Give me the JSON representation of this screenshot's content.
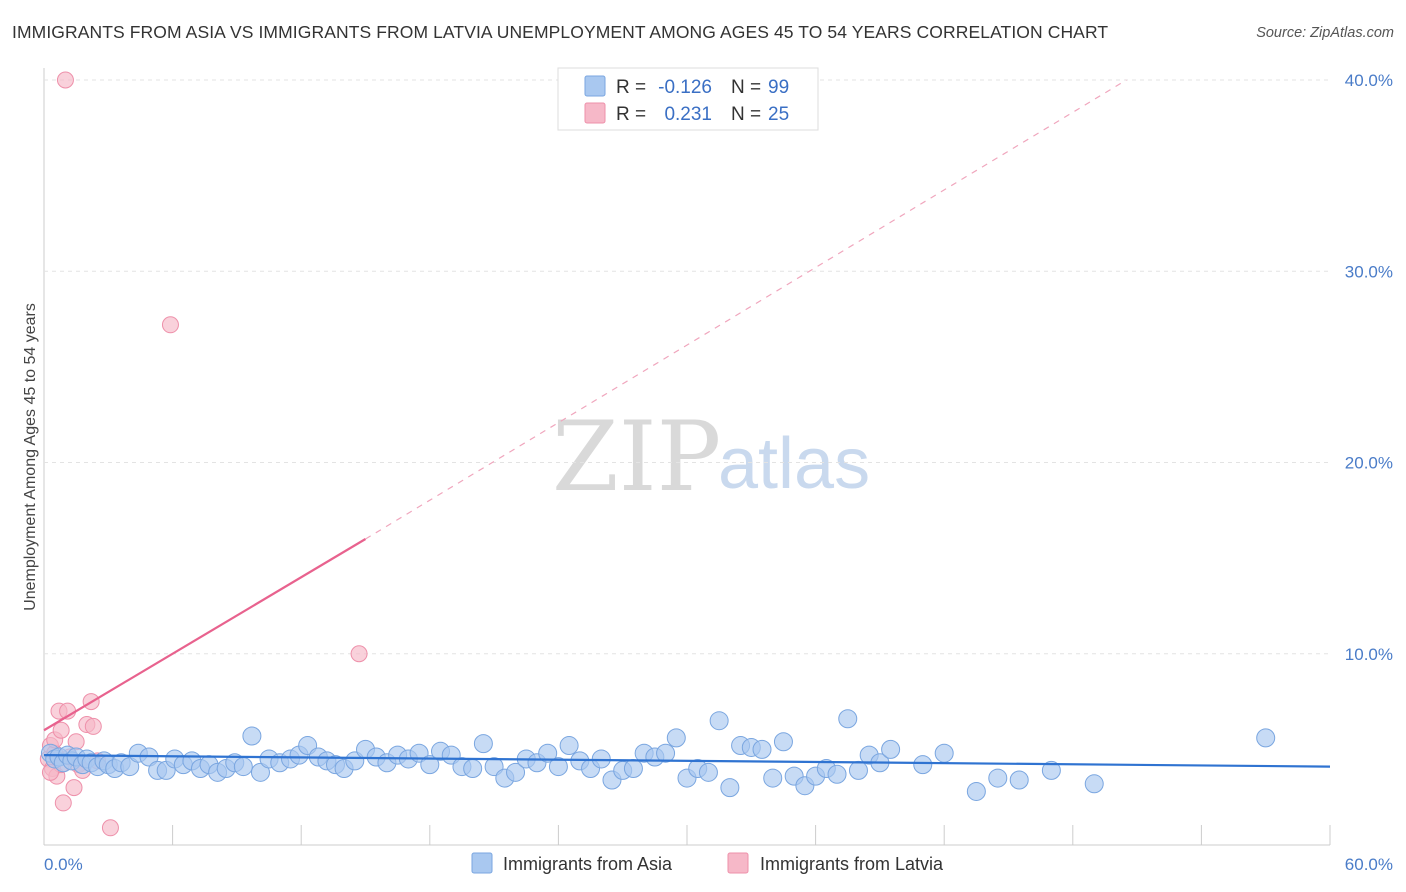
{
  "title": "IMMIGRANTS FROM ASIA VS IMMIGRANTS FROM LATVIA UNEMPLOYMENT AMONG AGES 45 TO 54 YEARS CORRELATION CHART",
  "source": "Source: ZipAtlas.com",
  "watermark": {
    "zip": "ZIP",
    "atlas": "atlas"
  },
  "legend_box": {
    "rows": [
      {
        "r_label": "R =",
        "r_value": "-0.126",
        "n_label": "N =",
        "n_value": "99",
        "color": "#a9c8f0"
      },
      {
        "r_label": "R =",
        "r_value": "0.231",
        "n_label": "N =",
        "n_value": "25",
        "color": "#f6b8c8"
      }
    ]
  },
  "chart_data": {
    "type": "scatter",
    "title": "IMMIGRANTS FROM ASIA VS IMMIGRANTS FROM LATVIA UNEMPLOYMENT AMONG AGES 45 TO 54 YEARS CORRELATION CHART",
    "xlabel": "",
    "ylabel": "Unemployment Among Ages 45 to 54 years",
    "xlim": [
      0,
      60
    ],
    "ylim": [
      0,
      40
    ],
    "x_tick_labels": [
      "0.0%",
      "60.0%"
    ],
    "y_ticks": [
      10,
      20,
      30,
      40
    ],
    "y_tick_labels": [
      "10.0%",
      "20.0%",
      "30.0%",
      "40.0%"
    ],
    "legend_position": "bottom",
    "series": [
      {
        "name": "Immigrants from Asia",
        "color": "#a9c8f0",
        "stroke": "#7aa6e0",
        "trend": {
          "x0": 0,
          "y0": 4.7,
          "x1": 60,
          "y1": 4.1,
          "color": "#2f73d1"
        },
        "points": [
          [
            0.3,
            4.8
          ],
          [
            0.5,
            4.5
          ],
          [
            0.7,
            4.6
          ],
          [
            0.9,
            4.3
          ],
          [
            1.1,
            4.7
          ],
          [
            1.3,
            4.4
          ],
          [
            1.5,
            4.6
          ],
          [
            1.8,
            4.2
          ],
          [
            2.0,
            4.5
          ],
          [
            2.2,
            4.3
          ],
          [
            2.5,
            4.1
          ],
          [
            2.8,
            4.4
          ],
          [
            3.0,
            4.2
          ],
          [
            3.3,
            4.0
          ],
          [
            3.6,
            4.3
          ],
          [
            4.0,
            4.1
          ],
          [
            4.4,
            4.8
          ],
          [
            4.9,
            4.6
          ],
          [
            5.3,
            3.9
          ],
          [
            5.7,
            3.9
          ],
          [
            6.1,
            4.5
          ],
          [
            6.5,
            4.2
          ],
          [
            6.9,
            4.4
          ],
          [
            7.3,
            4.0
          ],
          [
            7.7,
            4.2
          ],
          [
            8.1,
            3.8
          ],
          [
            8.5,
            4.0
          ],
          [
            8.9,
            4.3
          ],
          [
            9.3,
            4.1
          ],
          [
            9.7,
            5.7
          ],
          [
            10.1,
            3.8
          ],
          [
            10.5,
            4.5
          ],
          [
            11.0,
            4.3
          ],
          [
            11.5,
            4.5
          ],
          [
            11.9,
            4.7
          ],
          [
            12.3,
            5.2
          ],
          [
            12.8,
            4.6
          ],
          [
            13.2,
            4.4
          ],
          [
            13.6,
            4.2
          ],
          [
            14.0,
            4.0
          ],
          [
            14.5,
            4.4
          ],
          [
            15.0,
            5.0
          ],
          [
            15.5,
            4.6
          ],
          [
            16.0,
            4.3
          ],
          [
            16.5,
            4.7
          ],
          [
            17.0,
            4.5
          ],
          [
            17.5,
            4.8
          ],
          [
            18.0,
            4.2
          ],
          [
            18.5,
            4.9
          ],
          [
            19.0,
            4.7
          ],
          [
            19.5,
            4.1
          ],
          [
            20.0,
            4.0
          ],
          [
            20.5,
            5.3
          ],
          [
            21.0,
            4.1
          ],
          [
            21.5,
            3.5
          ],
          [
            22.0,
            3.8
          ],
          [
            22.5,
            4.5
          ],
          [
            23.0,
            4.3
          ],
          [
            23.5,
            4.8
          ],
          [
            24.0,
            4.1
          ],
          [
            24.5,
            5.2
          ],
          [
            25.0,
            4.4
          ],
          [
            25.5,
            4.0
          ],
          [
            26.0,
            4.5
          ],
          [
            26.5,
            3.4
          ],
          [
            27.0,
            3.9
          ],
          [
            27.5,
            4.0
          ],
          [
            28.0,
            4.8
          ],
          [
            28.5,
            4.6
          ],
          [
            29.0,
            4.8
          ],
          [
            29.5,
            5.6
          ],
          [
            30.0,
            3.5
          ],
          [
            30.5,
            4.0
          ],
          [
            31.0,
            3.8
          ],
          [
            31.5,
            6.5
          ],
          [
            32.0,
            3.0
          ],
          [
            32.5,
            5.2
          ],
          [
            33.0,
            5.1
          ],
          [
            33.5,
            5.0
          ],
          [
            34.0,
            3.5
          ],
          [
            34.5,
            5.4
          ],
          [
            35.0,
            3.6
          ],
          [
            35.5,
            3.1
          ],
          [
            36.0,
            3.6
          ],
          [
            36.5,
            4.0
          ],
          [
            37.0,
            3.7
          ],
          [
            37.5,
            6.6
          ],
          [
            38.0,
            3.9
          ],
          [
            38.5,
            4.7
          ],
          [
            39.0,
            4.3
          ],
          [
            39.5,
            5.0
          ],
          [
            41.0,
            4.2
          ],
          [
            42.0,
            4.8
          ],
          [
            43.5,
            2.8
          ],
          [
            44.5,
            3.5
          ],
          [
            45.5,
            3.4
          ],
          [
            47.0,
            3.9
          ],
          [
            49.0,
            3.2
          ],
          [
            57.0,
            5.6
          ]
        ]
      },
      {
        "name": "Immigrants from Latvia",
        "color": "#f6b8c8",
        "stroke": "#ee90aa",
        "trend": {
          "x0": 0,
          "y0": 6.0,
          "x1": 15,
          "y1": 16.0,
          "color": "#e8628e"
        },
        "trend_extension": {
          "x0": 15,
          "y0": 16.0,
          "x1": 50.5,
          "y1": 40.0
        },
        "points": [
          [
            0.2,
            4.5
          ],
          [
            0.3,
            5.2
          ],
          [
            0.4,
            4.0
          ],
          [
            0.5,
            4.8
          ],
          [
            0.6,
            3.6
          ],
          [
            0.7,
            7.0
          ],
          [
            0.8,
            4.2
          ],
          [
            0.9,
            2.2
          ],
          [
            1.0,
            40.0
          ],
          [
            1.1,
            7.0
          ],
          [
            1.2,
            4.6
          ],
          [
            1.4,
            3.0
          ],
          [
            1.5,
            5.4
          ],
          [
            1.6,
            4.2
          ],
          [
            1.8,
            3.9
          ],
          [
            2.0,
            6.3
          ],
          [
            2.2,
            7.5
          ],
          [
            2.3,
            6.2
          ],
          [
            2.5,
            4.4
          ],
          [
            3.1,
            0.9
          ],
          [
            5.9,
            27.2
          ],
          [
            14.7,
            10.0
          ],
          [
            0.3,
            3.8
          ],
          [
            0.5,
            5.5
          ],
          [
            0.8,
            6.0
          ]
        ]
      }
    ]
  }
}
